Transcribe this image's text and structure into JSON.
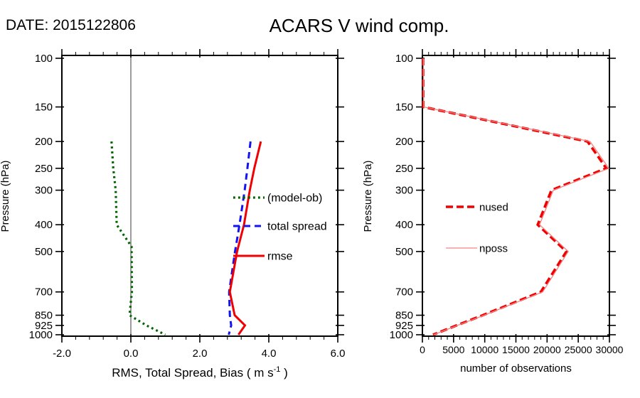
{
  "header": {
    "date": "DATE: 2015122806",
    "title": "ACARS V wind comp."
  },
  "chart_data": [
    {
      "type": "line",
      "panel": "left",
      "title": "",
      "xlabel_parts": {
        "pre": "RMS, Total Spread, Bias ( m s",
        "sup": "-1",
        "post": " )"
      },
      "ylabel": "Pressure (hPa)",
      "xlim": [
        -2.0,
        6.0
      ],
      "xticks": [
        -2.0,
        0.0,
        2.0,
        4.0,
        6.0
      ],
      "xtick_labels": [
        "-2.0",
        "0.0",
        "2.0",
        "4.0",
        "6.0"
      ],
      "x_minor_step": 0.4,
      "yscale": "log",
      "ylim_top_to_bottom": [
        100,
        1000
      ],
      "yticks": [
        100,
        150,
        200,
        250,
        300,
        400,
        500,
        700,
        850,
        925,
        1000
      ],
      "ytick_labels": [
        "100",
        "150",
        "200",
        "250",
        "300",
        "400",
        "500",
        "700",
        "850",
        "925",
        "1000"
      ],
      "zero_line_x": 0.0,
      "grid": false,
      "legend_position": "inside-right-middle",
      "series": [
        {
          "name": "(model-ob)",
          "color": "#006400",
          "line_style": "dotted",
          "pressures": [
            200,
            250,
            300,
            400,
            480,
            700,
            850,
            925,
            1000
          ],
          "values": [
            -0.56,
            -0.51,
            -0.44,
            -0.41,
            0.02,
            0.03,
            -0.04,
            0.45,
            1.0
          ]
        },
        {
          "name": "total spread",
          "color": "#1414f0",
          "line_style": "dashed",
          "pressures": [
            200,
            250,
            300,
            400,
            500,
            700,
            850,
            925,
            1000
          ],
          "values": [
            3.47,
            3.38,
            3.3,
            3.15,
            3.02,
            2.85,
            2.87,
            2.91,
            2.84
          ]
        },
        {
          "name": "rmse",
          "color": "#f00000",
          "line_style": "solid",
          "pressures": [
            200,
            250,
            300,
            400,
            500,
            700,
            850,
            925,
            1000
          ],
          "values": [
            3.77,
            3.58,
            3.45,
            3.28,
            3.08,
            2.87,
            3.01,
            3.31,
            3.12
          ]
        }
      ]
    },
    {
      "type": "line",
      "panel": "right",
      "title": "",
      "xlabel": "number of observations",
      "ylabel": "Pressure (hPa)",
      "xlim": [
        0,
        30000
      ],
      "xticks": [
        0,
        5000,
        10000,
        15000,
        20000,
        25000,
        30000
      ],
      "xtick_labels": [
        "0",
        "5000",
        "10000",
        "15000",
        "20000",
        "25000",
        "30000"
      ],
      "x_minor_step": 1000,
      "yscale": "log",
      "ylim_top_to_bottom": [
        100,
        1000
      ],
      "yticks": [
        100,
        150,
        200,
        250,
        300,
        400,
        500,
        700,
        850,
        925,
        1000
      ],
      "ytick_labels": [
        "100",
        "150",
        "200",
        "250",
        "300",
        "400",
        "500",
        "700",
        "850",
        "925",
        "1000"
      ],
      "grid": false,
      "legend_position": "inside-left-middle",
      "series": [
        {
          "name": "nused",
          "color": "#f00000",
          "line_style": "dashed-thick",
          "pressures": [
            100,
            150,
            200,
            250,
            300,
            400,
            500,
            700,
            850,
            925,
            1000
          ],
          "values": [
            100,
            150,
            26500,
            29500,
            20700,
            18500,
            23100,
            19000,
            9700,
            5500,
            1700
          ]
        },
        {
          "name": "nposs",
          "color": "#f58282",
          "line_style": "thin-solid",
          "pressures": [
            100,
            150,
            200,
            250,
            300,
            400,
            500,
            700,
            850,
            925,
            1000
          ],
          "values": [
            150,
            200,
            26900,
            29900,
            21000,
            18800,
            23400,
            19300,
            9900,
            5650,
            1800
          ]
        }
      ]
    }
  ]
}
